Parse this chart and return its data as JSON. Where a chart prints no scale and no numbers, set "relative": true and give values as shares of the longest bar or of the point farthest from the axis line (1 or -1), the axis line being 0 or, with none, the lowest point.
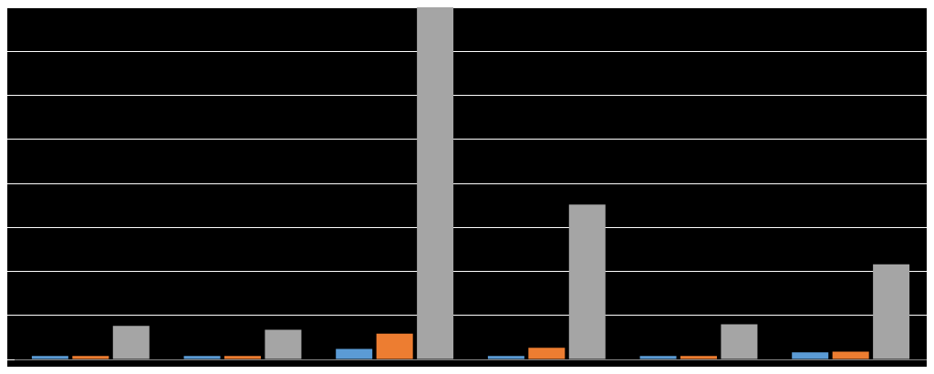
{
  "chart_data": {
    "type": "bar",
    "relative": true,
    "grid": "y",
    "categories": [
      null,
      null,
      null,
      null,
      null,
      null
    ],
    "series": [
      {
        "color": "#5b9bd5",
        "values": [
          0.01,
          0.01,
          0.03,
          0.01,
          0.01,
          0.02
        ]
      },
      {
        "color": "#ed7d31",
        "values": [
          0.01,
          0.01,
          0.073,
          0.033,
          0.01,
          0.022
        ]
      },
      {
        "color": "#a5a5a5",
        "values": [
          0.095,
          0.084,
          1,
          0.44,
          0.1,
          0.27
        ]
      }
    ]
  }
}
